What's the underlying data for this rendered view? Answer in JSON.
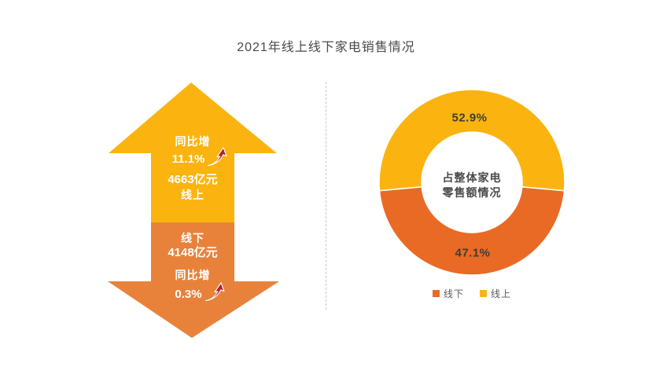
{
  "title": "2021年线上线下家电销售情况",
  "colors": {
    "yellow": "#FBB40F",
    "arrow_orange": "#E8823B",
    "pie_orange": "#E96A25",
    "red_arrow": "#B2222A",
    "divider": "#c9c9c9"
  },
  "arrow_chart": {
    "online": {
      "growth_label": "同比增",
      "growth_value": "11.1%",
      "amount": "4663亿元",
      "channel": "线上"
    },
    "offline": {
      "channel": "线下",
      "amount": "4148亿元",
      "growth_label": "同比增",
      "growth_value": "0.3%"
    }
  },
  "donut": {
    "center_line1": "占整体家电",
    "center_line2": "零售额情况",
    "online_pct_label": "52.9%",
    "offline_pct_label": "47.1%"
  },
  "legend": {
    "items": [
      {
        "label": "线下",
        "color": "#E96A25"
      },
      {
        "label": "线上",
        "color": "#FBB40F"
      }
    ]
  },
  "chart_data": [
    {
      "type": "bar",
      "title": "2021年线上线下家电销售情况",
      "categories": [
        "线上",
        "线下"
      ],
      "series": [
        {
          "name": "零售额(亿元)",
          "values": [
            4663,
            4148
          ]
        },
        {
          "name": "同比增(%)",
          "values": [
            11.1,
            0.3
          ]
        }
      ],
      "notes": "双向箭头信息图：黄色上箭头=线上4663亿元同比增11.1%，橙色下箭头=线下4148亿元同比增0.3%"
    },
    {
      "type": "pie",
      "title": "占整体家电零售额情况",
      "categories": [
        "线上",
        "线下"
      ],
      "values": [
        52.9,
        47.1
      ],
      "colors": [
        "#FBB40F",
        "#E96A25"
      ],
      "donut": true,
      "legend_position": "bottom"
    }
  ]
}
